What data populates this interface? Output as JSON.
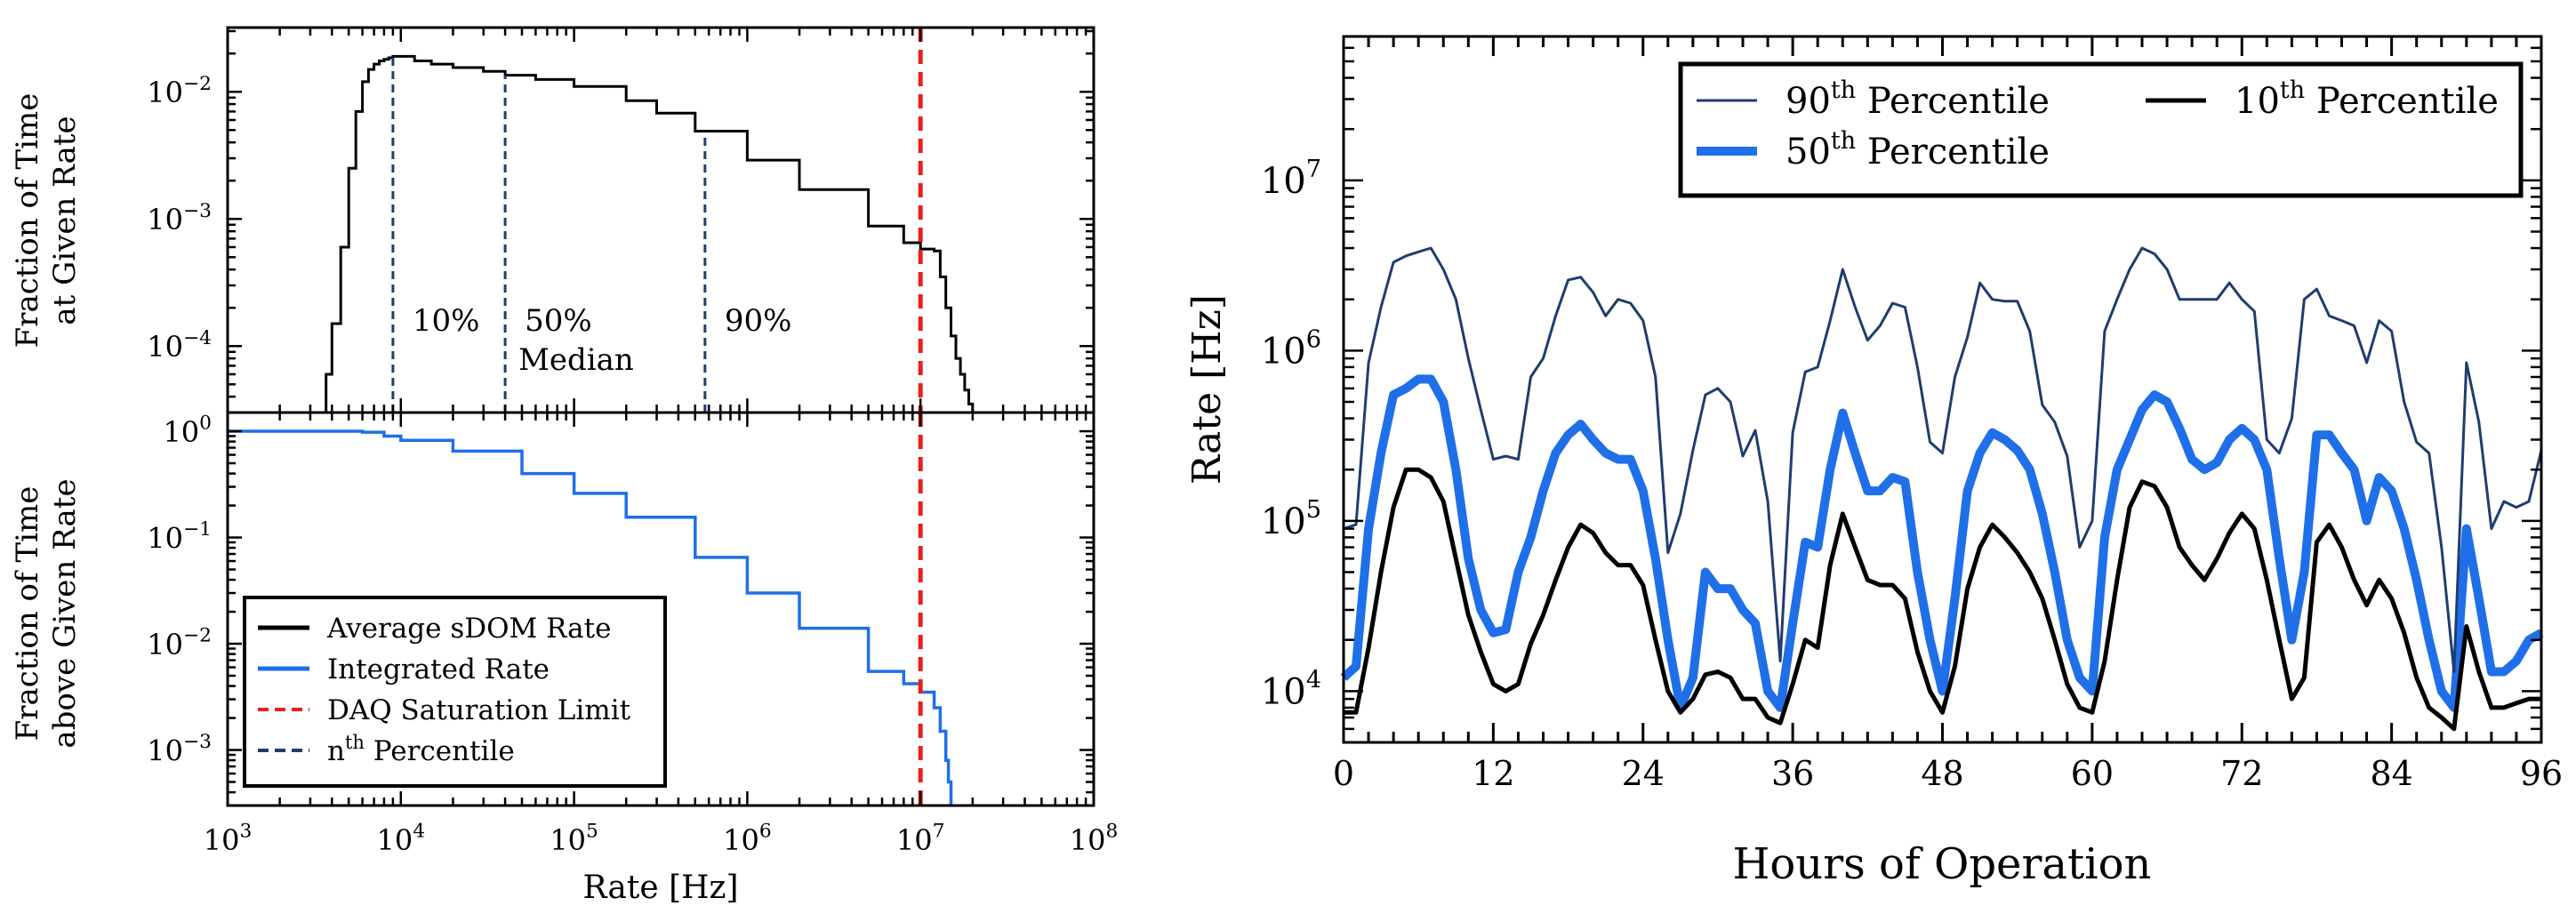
{
  "chart_data": [
    {
      "type": "line",
      "panel": "top-left",
      "title": "",
      "ylabel_line1": "Fraction of Time",
      "ylabel_line2": "at Given Rate",
      "xscale": "log",
      "yscale": "log",
      "xlim": [
        1000,
        100000000
      ],
      "ylim": [
        3e-05,
        0.032
      ],
      "ytick_labels": [
        {
          "value": 0.01,
          "base": "10",
          "exp": "−2"
        },
        {
          "value": 0.001,
          "base": "10",
          "exp": "−3"
        },
        {
          "value": 0.0001,
          "base": "10",
          "exp": "−4"
        }
      ],
      "series": [
        {
          "name": "Average sDOM Rate",
          "color": "#000000",
          "style": "step",
          "x": [
            3500,
            3700,
            4000,
            4500,
            5000,
            5500,
            6000,
            6500,
            7000,
            7500,
            8000,
            8500,
            9000,
            9500,
            10000,
            12000,
            15000,
            20000,
            30000,
            40000,
            60000,
            100000,
            200000,
            300000,
            500000,
            1000000,
            2000000,
            5000000,
            8000000,
            10000000,
            11000000,
            12000000,
            13000000,
            14000000,
            15000000,
            16000000,
            17000000,
            18000000,
            19000000,
            20000000
          ],
          "y": [
            3e-05,
            6e-05,
            0.00015,
            0.0006,
            0.0025,
            0.007,
            0.012,
            0.015,
            0.0165,
            0.0175,
            0.018,
            0.0185,
            0.019,
            0.019,
            0.019,
            0.0175,
            0.0165,
            0.0155,
            0.0145,
            0.0135,
            0.0125,
            0.011,
            0.0085,
            0.0068,
            0.0049,
            0.0029,
            0.0017,
            0.00088,
            0.00065,
            0.00058,
            0.00058,
            0.00056,
            0.00035,
            0.0002,
            0.00012,
            8e-05,
            6e-05,
            4.5e-05,
            3.5e-05,
            3e-05
          ]
        },
        {
          "name": "nth Percentile",
          "color": "#1f3d6e",
          "style": "dashed",
          "markers": [
            {
              "x": 9000,
              "label": "10%"
            },
            {
              "x": 40000,
              "label": "50%",
              "sublabel": "Median"
            },
            {
              "x": 570000,
              "label": "90%"
            }
          ]
        },
        {
          "name": "DAQ Saturation Limit",
          "color": "#e8201a",
          "style": "dashed",
          "x_value": 10000000
        }
      ]
    },
    {
      "type": "line",
      "panel": "bottom-left",
      "xlabel": "Rate [Hz]",
      "ylabel_line1": "Fraction of Time",
      "ylabel_line2": "above Given Rate",
      "xscale": "log",
      "yscale": "log",
      "xlim": [
        1000,
        100000000
      ],
      "ylim": [
        0.0003,
        1.5
      ],
      "xtick_labels": [
        {
          "value": 1000,
          "base": "10",
          "exp": "3"
        },
        {
          "value": 10000,
          "base": "10",
          "exp": "4"
        },
        {
          "value": 100000,
          "base": "10",
          "exp": "5"
        },
        {
          "value": 1000000,
          "base": "10",
          "exp": "6"
        },
        {
          "value": 10000000,
          "base": "10",
          "exp": "7"
        },
        {
          "value": 100000000,
          "base": "10",
          "exp": "8"
        }
      ],
      "ytick_labels": [
        {
          "value": 1,
          "base": "10",
          "exp": "0"
        },
        {
          "value": 0.1,
          "base": "10",
          "exp": "−1"
        },
        {
          "value": 0.01,
          "base": "10",
          "exp": "−2"
        },
        {
          "value": 0.001,
          "base": "10",
          "exp": "−3"
        }
      ],
      "series": [
        {
          "name": "Integrated Rate",
          "color": "#1f6fe8",
          "style": "step",
          "x": [
            1000,
            3000,
            5000,
            6000,
            8000,
            10000,
            20000,
            50000,
            100000,
            200000,
            500000,
            1000000,
            2000000,
            5000000,
            8000000,
            10000000,
            12000000,
            13000000,
            14000000,
            14500000,
            15000000
          ],
          "y": [
            1.0,
            1.0,
            1.0,
            0.98,
            0.9,
            0.82,
            0.65,
            0.4,
            0.26,
            0.155,
            0.065,
            0.03,
            0.014,
            0.0055,
            0.0042,
            0.0035,
            0.0025,
            0.0015,
            0.0008,
            0.0005,
            0.0003
          ]
        },
        {
          "name": "DAQ Saturation Limit",
          "color": "#e8201a",
          "style": "dashed",
          "x_value": 10000000
        }
      ],
      "legend": {
        "position": "bottom-left",
        "entries": [
          {
            "label": "Average sDOM Rate",
            "color": "#000000",
            "style": "solid"
          },
          {
            "label": "Integrated Rate",
            "color": "#1f6fe8",
            "style": "solid"
          },
          {
            "label": "DAQ Saturation Limit",
            "color": "#e8201a",
            "style": "dashed"
          },
          {
            "label_base": "n",
            "label_sup": "th",
            "label_rest": " Percentile",
            "color": "#1f3d6e",
            "style": "dashed"
          }
        ]
      }
    },
    {
      "type": "line",
      "panel": "right",
      "xlabel": "Hours of Operation",
      "ylabel": "Rate [Hz]",
      "xscale": "linear",
      "yscale": "log",
      "xlim": [
        0,
        96
      ],
      "ylim": [
        5000,
        70000000
      ],
      "xticks": [
        0,
        12,
        24,
        36,
        48,
        60,
        72,
        84,
        96
      ],
      "ytick_labels": [
        {
          "value": 10000,
          "base": "10",
          "exp": "4"
        },
        {
          "value": 100000,
          "base": "10",
          "exp": "5"
        },
        {
          "value": 1000000,
          "base": "10",
          "exp": "6"
        },
        {
          "value": 10000000,
          "base": "10",
          "exp": "7"
        }
      ],
      "x": [
        0,
        1,
        2,
        3,
        4,
        5,
        6,
        7,
        8,
        9,
        10,
        11,
        12,
        13,
        14,
        15,
        16,
        17,
        18,
        19,
        20,
        21,
        22,
        23,
        24,
        25,
        26,
        27,
        28,
        29,
        30,
        31,
        32,
        33,
        34,
        35,
        36,
        37,
        38,
        39,
        40,
        41,
        42,
        43,
        44,
        45,
        46,
        47,
        48,
        49,
        50,
        51,
        52,
        53,
        54,
        55,
        56,
        57,
        58,
        59,
        60,
        61,
        62,
        63,
        64,
        65,
        66,
        67,
        68,
        69,
        70,
        71,
        72,
        73,
        74,
        75,
        76,
        77,
        78,
        79,
        80,
        81,
        82,
        83,
        84,
        85,
        86,
        87,
        88,
        89,
        90,
        91,
        92,
        93,
        94,
        95,
        96
      ],
      "series": [
        {
          "name": "90th Percentile",
          "color": "#1f3d6e",
          "width": "thin",
          "values": [
            90000,
            95000,
            850000,
            1800000,
            3300000,
            3600000,
            3800000,
            4000000,
            3000000,
            2000000,
            900000,
            450000,
            230000,
            240000,
            230000,
            700000,
            900000,
            1600000,
            2600000,
            2700000,
            2200000,
            1600000,
            2000000,
            1900000,
            1500000,
            700000,
            65000,
            110000,
            260000,
            550000,
            600000,
            500000,
            240000,
            340000,
            130000,
            15000,
            330000,
            750000,
            800000,
            1500000,
            3000000,
            1800000,
            1150000,
            1400000,
            1900000,
            1800000,
            800000,
            290000,
            250000,
            700000,
            1200000,
            2500000,
            2000000,
            1950000,
            1950000,
            1300000,
            480000,
            380000,
            240000,
            70000,
            100000,
            1300000,
            2000000,
            3000000,
            4000000,
            3700000,
            3000000,
            2000000,
            2000000,
            2000000,
            2000000,
            2500000,
            2000000,
            1700000,
            300000,
            250000,
            400000,
            2000000,
            2300000,
            1600000,
            1500000,
            1400000,
            850000,
            1500000,
            1300000,
            500000,
            290000,
            250000,
            70000,
            13000,
            850000,
            380000,
            90000,
            130000,
            120000,
            130000,
            260000
          ]
        },
        {
          "name": "50th Percentile",
          "color": "#1f6fe8",
          "width": "thick",
          "values": [
            12000,
            14000,
            90000,
            250000,
            550000,
            600000,
            680000,
            680000,
            500000,
            200000,
            60000,
            30000,
            22000,
            23000,
            50000,
            80000,
            150000,
            250000,
            320000,
            370000,
            300000,
            250000,
            230000,
            230000,
            150000,
            60000,
            20000,
            8000,
            12000,
            50000,
            40000,
            40000,
            30000,
            25000,
            10000,
            8000,
            25000,
            75000,
            70000,
            200000,
            430000,
            250000,
            150000,
            150000,
            180000,
            170000,
            50000,
            20000,
            10000,
            35000,
            150000,
            250000,
            330000,
            300000,
            260000,
            200000,
            110000,
            50000,
            20000,
            12000,
            10000,
            80000,
            200000,
            300000,
            450000,
            550000,
            500000,
            350000,
            230000,
            200000,
            220000,
            300000,
            350000,
            300000,
            200000,
            60000,
            20000,
            50000,
            320000,
            320000,
            250000,
            200000,
            100000,
            180000,
            150000,
            90000,
            45000,
            20000,
            10000,
            8000,
            90000,
            35000,
            13000,
            13000,
            15000,
            20000,
            22000
          ]
        },
        {
          "name": "10th Percentile",
          "color": "#000000",
          "width": "medium",
          "values": [
            7500,
            7500,
            18000,
            50000,
            120000,
            200000,
            200000,
            180000,
            130000,
            60000,
            28000,
            17000,
            11000,
            10000,
            11000,
            19000,
            28000,
            45000,
            70000,
            95000,
            85000,
            65000,
            55000,
            55000,
            42000,
            20000,
            10000,
            7500,
            9000,
            12500,
            13000,
            12000,
            9000,
            9000,
            7000,
            6500,
            11000,
            20000,
            18000,
            55000,
            110000,
            70000,
            45000,
            42000,
            42000,
            35000,
            17000,
            10000,
            7500,
            14000,
            40000,
            70000,
            95000,
            80000,
            65000,
            50000,
            35000,
            20000,
            11000,
            8000,
            7500,
            15000,
            45000,
            120000,
            170000,
            160000,
            120000,
            70000,
            55000,
            45000,
            60000,
            85000,
            110000,
            90000,
            45000,
            20000,
            9000,
            12000,
            75000,
            95000,
            70000,
            45000,
            32000,
            45000,
            35000,
            22000,
            12000,
            8000,
            7000,
            6000,
            24000,
            13000,
            8000,
            8000,
            8500,
            9000,
            9000
          ]
        }
      ],
      "legend": {
        "position": "top",
        "entries": [
          {
            "label_base": "90",
            "label_sup": "th",
            "label_rest": " Percentile",
            "color": "#1f3d6e",
            "width": "thin"
          },
          {
            "label_base": "10",
            "label_sup": "th",
            "label_rest": " Percentile",
            "color": "#000000",
            "width": "medium"
          },
          {
            "label_base": "50",
            "label_sup": "th",
            "label_rest": " Percentile",
            "color": "#1f6fe8",
            "width": "thick"
          }
        ]
      }
    }
  ]
}
